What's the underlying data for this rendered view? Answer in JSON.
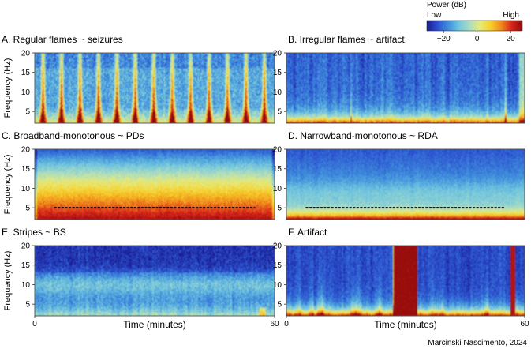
{
  "colorbar": {
    "title": "Power (dB)",
    "low_label": "Low",
    "high_label": "High",
    "ticks": [
      {
        "value": -20,
        "label": "−20"
      },
      {
        "value": 0,
        "label": "0"
      },
      {
        "value": 20,
        "label": "20"
      }
    ],
    "range": [
      -30,
      27
    ],
    "colors": [
      "#1a1a8c",
      "#2c4fd1",
      "#3f8fdc",
      "#6ec4e0",
      "#a9dcc4",
      "#e6ea7a",
      "#f7d02a",
      "#f08a1c",
      "#d9231b",
      "#8c0d0d"
    ]
  },
  "axes": {
    "ylabel": "Frequency (Hz)",
    "xlabel": "Time (minutes)",
    "y_ticks": [
      "5",
      "10",
      "15",
      "20"
    ],
    "x_ticks": [
      "0",
      "60"
    ],
    "ylim": [
      2,
      20
    ],
    "xlim": [
      0,
      60
    ]
  },
  "chart_data": [
    {
      "type": "heatmap",
      "id": "A",
      "title": "A. Regular flames ~ seizures",
      "pattern": "regular-flames",
      "flame_count": 13,
      "xlim": [
        0,
        60
      ],
      "ylim": [
        2,
        20
      ],
      "reference_line": null
    },
    {
      "type": "heatmap",
      "id": "B",
      "title": "B. Irregular flames ~ artifact",
      "pattern": "irregular-flames",
      "xlim": [
        0,
        60
      ],
      "ylim": [
        2,
        20
      ],
      "reference_line": null
    },
    {
      "type": "heatmap",
      "id": "C",
      "title": "C. Broadband-monotonous ~ PDs",
      "pattern": "broadband-monotonous",
      "xlim": [
        0,
        60
      ],
      "ylim": [
        2,
        20
      ],
      "reference_line": {
        "y": 5,
        "x": [
          5,
          55
        ]
      }
    },
    {
      "type": "heatmap",
      "id": "D",
      "title": "D. Narrowband-monotonous ~ RDA",
      "pattern": "narrowband-monotonous",
      "xlim": [
        0,
        60
      ],
      "ylim": [
        2,
        20
      ],
      "reference_line": {
        "y": 5,
        "x": [
          5,
          55
        ]
      }
    },
    {
      "type": "heatmap",
      "id": "E",
      "title": "E. Stripes ~ BS",
      "pattern": "stripes",
      "xlim": [
        0,
        60
      ],
      "ylim": [
        2,
        20
      ],
      "reference_line": null
    },
    {
      "type": "heatmap",
      "id": "F",
      "title": "F. Artifact",
      "pattern": "artifact",
      "broad_artifact_minutes": [
        27,
        33
      ],
      "xlim": [
        0,
        60
      ],
      "ylim": [
        2,
        20
      ],
      "reference_line": null
    }
  ],
  "credit": "Marcinski Nascimento, 2024"
}
